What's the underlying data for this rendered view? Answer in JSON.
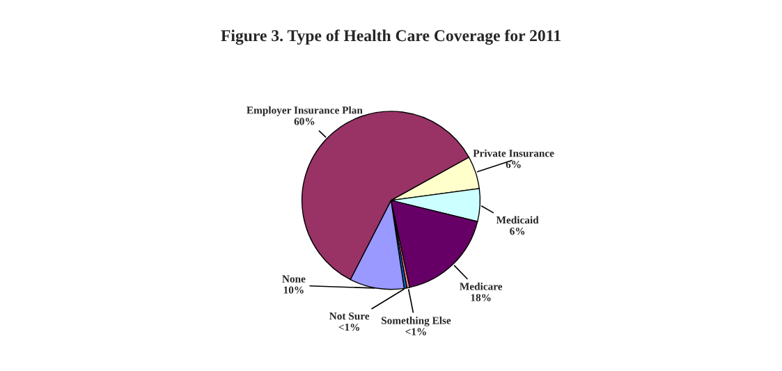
{
  "chart_data": {
    "type": "pie",
    "title": "Figure 3. Type of Health Care Coverage for 2011",
    "categories": [
      "Private Insurance",
      "Medicaid",
      "Medicare",
      "Something Else",
      "Not Sure",
      "None",
      "Employer Insurance Plan"
    ],
    "values": [
      6,
      6,
      18,
      0.5,
      0.5,
      10,
      60
    ],
    "value_labels": [
      "6%",
      "6%",
      "18%",
      "<1%",
      "<1%",
      "10%",
      "60%"
    ],
    "colors": [
      "#ffffcc",
      "#ccffff",
      "#660066",
      "#ff8080",
      "#0066cc",
      "#9999ff",
      "#993366"
    ]
  }
}
